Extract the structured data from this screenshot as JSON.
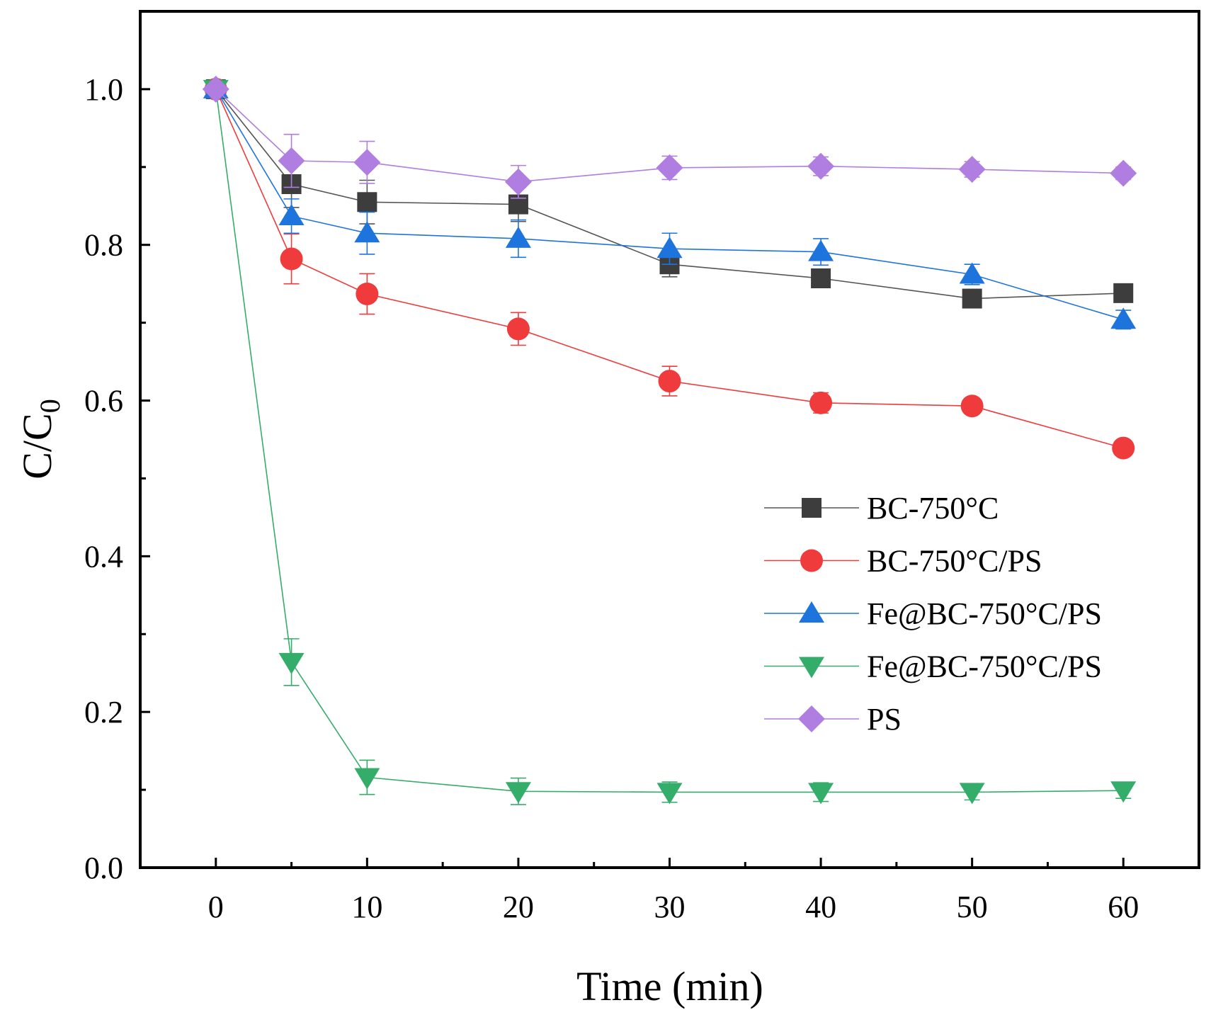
{
  "chart_data": {
    "type": "line",
    "title": "",
    "xlabel": "Time (min)",
    "ylabel_main": "C/C",
    "ylabel_sub": "0",
    "xlim": [
      -5,
      65
    ],
    "ylim": [
      0.0,
      1.1
    ],
    "x_ticks": [
      0,
      10,
      20,
      30,
      40,
      50,
      60
    ],
    "x_tick_labels": [
      "0",
      "10",
      "20",
      "30",
      "40",
      "50",
      "60"
    ],
    "y_ticks": [
      0.0,
      0.2,
      0.4,
      0.6,
      0.8,
      1.0
    ],
    "y_tick_labels": [
      "0.0",
      "0.2",
      "0.4",
      "0.6",
      "0.8",
      "1.0"
    ],
    "x_minor_ticks": [
      5,
      15,
      25,
      35,
      45,
      55
    ],
    "y_minor_ticks": [
      0.1,
      0.3,
      0.5,
      0.7,
      0.9
    ],
    "legend_position": "center-right",
    "x": [
      0,
      5,
      10,
      20,
      30,
      40,
      50,
      60
    ],
    "series": [
      {
        "name": "BC-750°C",
        "marker": "square",
        "color": "#3d3d3d",
        "line_color": "#555555",
        "values": [
          1.0,
          0.878,
          0.855,
          0.852,
          0.775,
          0.757,
          0.731,
          0.738
        ],
        "errors": [
          0.005,
          0.03,
          0.028,
          0.022,
          0.016,
          0.012,
          0.01,
          0.01
        ]
      },
      {
        "name": "BC-750°C/PS",
        "marker": "circle",
        "color": "#ef3b3b",
        "line_color": "#ef3b3b",
        "values": [
          1.0,
          0.782,
          0.737,
          0.692,
          0.625,
          0.597,
          0.593,
          0.539
        ],
        "errors": [
          0.005,
          0.032,
          0.026,
          0.021,
          0.019,
          0.013,
          0.009,
          0.009
        ]
      },
      {
        "name": "Fe@BC-750°C/PS",
        "marker": "triangle-up",
        "color": "#1e74dd",
        "line_color": "#1e74dd",
        "values": [
          1.0,
          0.837,
          0.815,
          0.808,
          0.795,
          0.791,
          0.762,
          0.704
        ],
        "errors": [
          0.005,
          0.022,
          0.027,
          0.024,
          0.02,
          0.017,
          0.013,
          0.012
        ]
      },
      {
        "name": "Fe@BC-750°C/PS",
        "marker": "triangle-down",
        "color": "#35ad6a",
        "line_color": "#35ad6a",
        "values": [
          1.0,
          0.264,
          0.116,
          0.098,
          0.097,
          0.097,
          0.097,
          0.099
        ],
        "errors": [
          0.005,
          0.03,
          0.022,
          0.017,
          0.013,
          0.012,
          0.01,
          0.01
        ]
      },
      {
        "name": "PS",
        "marker": "diamond",
        "color": "#b07de0",
        "line_color": "#b07de0",
        "values": [
          1.0,
          0.908,
          0.906,
          0.881,
          0.899,
          0.901,
          0.897,
          0.892
        ],
        "errors": [
          0.005,
          0.034,
          0.027,
          0.021,
          0.015,
          0.012,
          0.01,
          0.008
        ]
      }
    ]
  }
}
